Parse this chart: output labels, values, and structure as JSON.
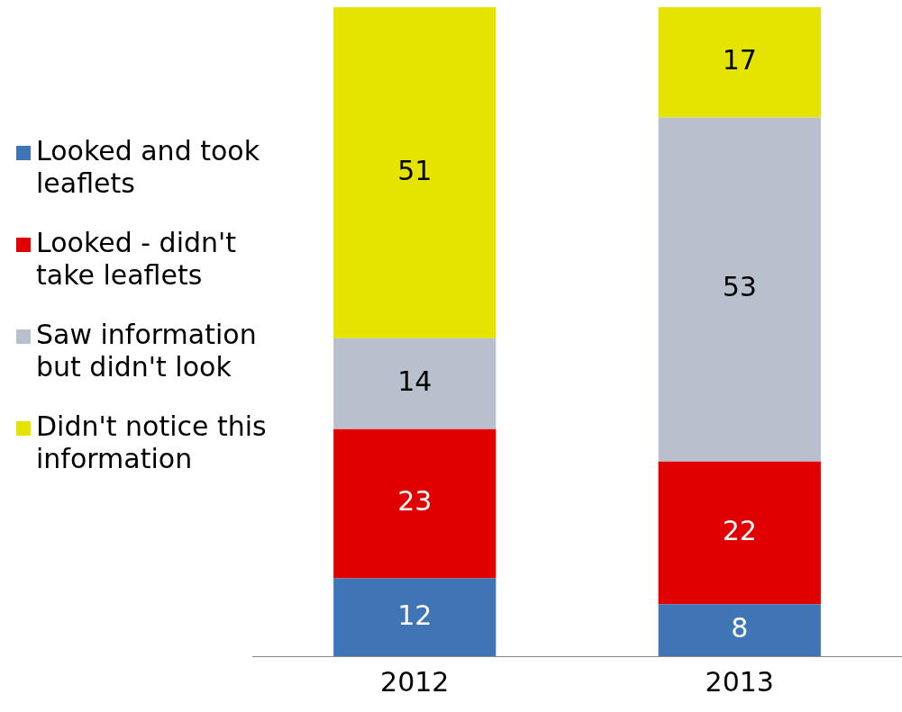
{
  "chart_data": {
    "type": "bar",
    "stacked": true,
    "categories": [
      "2012",
      "2013"
    ],
    "series": [
      {
        "name": "Looked and took leaflets",
        "color": "#3f74b5",
        "values": [
          12,
          8
        ]
      },
      {
        "name": "Looked - didn't take leaflets",
        "color": "#e00000",
        "values": [
          23,
          22
        ]
      },
      {
        "name": "Saw information but didn't look",
        "color": "#b7c0cc",
        "values": [
          14,
          53
        ]
      },
      {
        "name": "Didn't notice this information",
        "color": "#e4e400",
        "values": [
          51,
          17
        ]
      }
    ],
    "data_labels": true,
    "legend": "left",
    "grid": false
  }
}
